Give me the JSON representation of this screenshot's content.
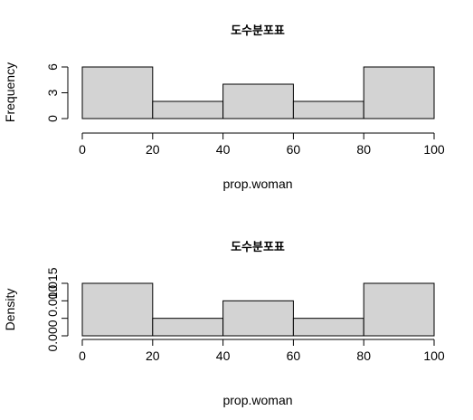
{
  "chart_data": [
    {
      "type": "bar",
      "title": "도수분포표",
      "xlabel": "prop.woman",
      "ylabel": "Frequency",
      "bins": [
        [
          0,
          20
        ],
        [
          20,
          40
        ],
        [
          40,
          60
        ],
        [
          60,
          80
        ],
        [
          80,
          100
        ]
      ],
      "values": [
        6,
        2,
        4,
        2,
        6
      ],
      "xlim": [
        0,
        100
      ],
      "ylim": [
        0,
        6
      ],
      "xticks": [
        0,
        20,
        40,
        60,
        80,
        100
      ],
      "yticks": [
        0,
        3,
        6
      ],
      "xtick_labels": [
        "0",
        "20",
        "40",
        "60",
        "80",
        "100"
      ],
      "ytick_labels": [
        "0",
        "3",
        "6"
      ],
      "bar_color": "#d3d3d3",
      "grid": false
    },
    {
      "type": "bar",
      "title": "도수분포표",
      "xlabel": "prop.woman",
      "ylabel": "Density",
      "bins": [
        [
          0,
          20
        ],
        [
          20,
          40
        ],
        [
          40,
          60
        ],
        [
          60,
          80
        ],
        [
          80,
          100
        ]
      ],
      "values": [
        0.015,
        0.005,
        0.01,
        0.005,
        0.015
      ],
      "xlim": [
        0,
        100
      ],
      "ylim": [
        0,
        0.015
      ],
      "xticks": [
        0,
        20,
        40,
        60,
        80,
        100
      ],
      "yticks": [
        0,
        0.005,
        0.01,
        0.015
      ],
      "xtick_labels": [
        "0",
        "20",
        "40",
        "60",
        "80",
        "100"
      ],
      "ytick_labels": [
        "0.000",
        "",
        "0.010",
        "0.015"
      ],
      "bar_color": "#d3d3d3",
      "grid": false
    }
  ]
}
